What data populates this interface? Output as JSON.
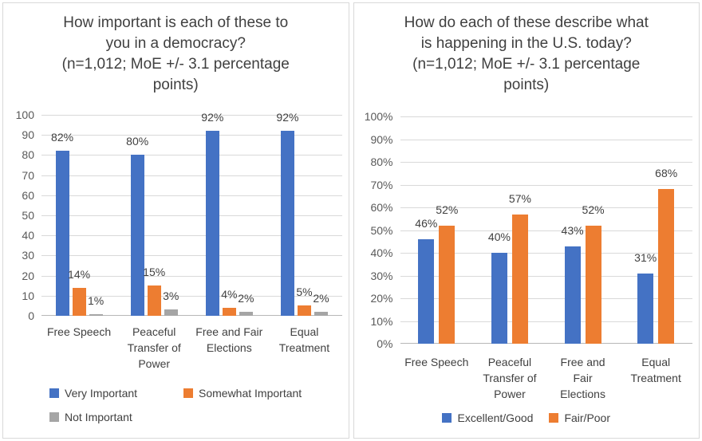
{
  "colors": {
    "blue": "#4472C4",
    "orange": "#ED7D31",
    "gray": "#A5A5A5",
    "title_text": "#404040",
    "axis_text": "#595959",
    "gridline": "#D9D9D9",
    "panel_border": "#D9D9D9"
  },
  "chart_data": [
    {
      "type": "bar",
      "title": "How important is each of these to you in a democracy?",
      "subtitle": "(n=1,012; MoE +/- 3.1 percentage points)",
      "title_lines": [
        "How important is each of these to",
        "you in a democracy?",
        "(n=1,012; MoE +/- 3.1 percentage",
        "points)"
      ],
      "categories": [
        "Free Speech",
        "Peaceful Transfer of Power",
        "Free and Fair Elections",
        "Equal Treatment"
      ],
      "categories_wrapped": [
        [
          "Free Speech"
        ],
        [
          "Peaceful",
          "Transfer of",
          "Power"
        ],
        [
          "Free and Fair",
          "Elections"
        ],
        [
          "Equal",
          "Treatment"
        ]
      ],
      "series": [
        {
          "name": "Very Important",
          "color": "#4472C4",
          "values": [
            82,
            80,
            92,
            92
          ],
          "labels": [
            "82%",
            "80%",
            "92%",
            "92%"
          ]
        },
        {
          "name": "Somewhat Important",
          "color": "#ED7D31",
          "values": [
            14,
            15,
            4,
            5
          ],
          "labels": [
            "14%",
            "15%",
            "4%",
            "5%"
          ]
        },
        {
          "name": "Not Important",
          "color": "#A5A5A5",
          "values": [
            1,
            3,
            2,
            2
          ],
          "labels": [
            "1%",
            "3%",
            "2%",
            "2%"
          ]
        }
      ],
      "xlabel": "",
      "ylabel": "",
      "ylim": [
        0,
        100
      ],
      "yticks": [
        "100",
        "90",
        "80",
        "70",
        "60",
        "50",
        "40",
        "30",
        "20",
        "10",
        "0"
      ],
      "grid": true,
      "legend_position": "bottom"
    },
    {
      "type": "bar",
      "title": "How do each of these describe what is happening in the U.S. today?",
      "subtitle": "(n=1,012; MoE +/- 3.1 percentage points)",
      "title_lines": [
        "How do each of these describe what",
        "is happening in the U.S. today?",
        "(n=1,012; MoE +/- 3.1 percentage",
        "points)"
      ],
      "categories": [
        "Free Speech",
        "Peaceful Transfer of Power",
        "Free and Fair Elections",
        "Equal Treatment"
      ],
      "categories_wrapped": [
        [
          "Free Speech"
        ],
        [
          "Peaceful",
          "Transfer of",
          "Power"
        ],
        [
          "Free and",
          "Fair",
          "Elections"
        ],
        [
          "Equal",
          "Treatment"
        ]
      ],
      "series": [
        {
          "name": "Excellent/Good",
          "color": "#4472C4",
          "values": [
            46,
            40,
            43,
            31
          ],
          "labels": [
            "46%",
            "40%",
            "43%",
            "31%"
          ]
        },
        {
          "name": "Fair/Poor",
          "color": "#ED7D31",
          "values": [
            52,
            57,
            52,
            68
          ],
          "labels": [
            "52%",
            "57%",
            "52%",
            "68%"
          ]
        }
      ],
      "xlabel": "",
      "ylabel": "",
      "ylim": [
        0,
        100
      ],
      "yticks": [
        "100%",
        "90%",
        "80%",
        "70%",
        "60%",
        "50%",
        "40%",
        "30%",
        "20%",
        "10%",
        "0%"
      ],
      "grid": true,
      "legend_position": "bottom"
    }
  ]
}
